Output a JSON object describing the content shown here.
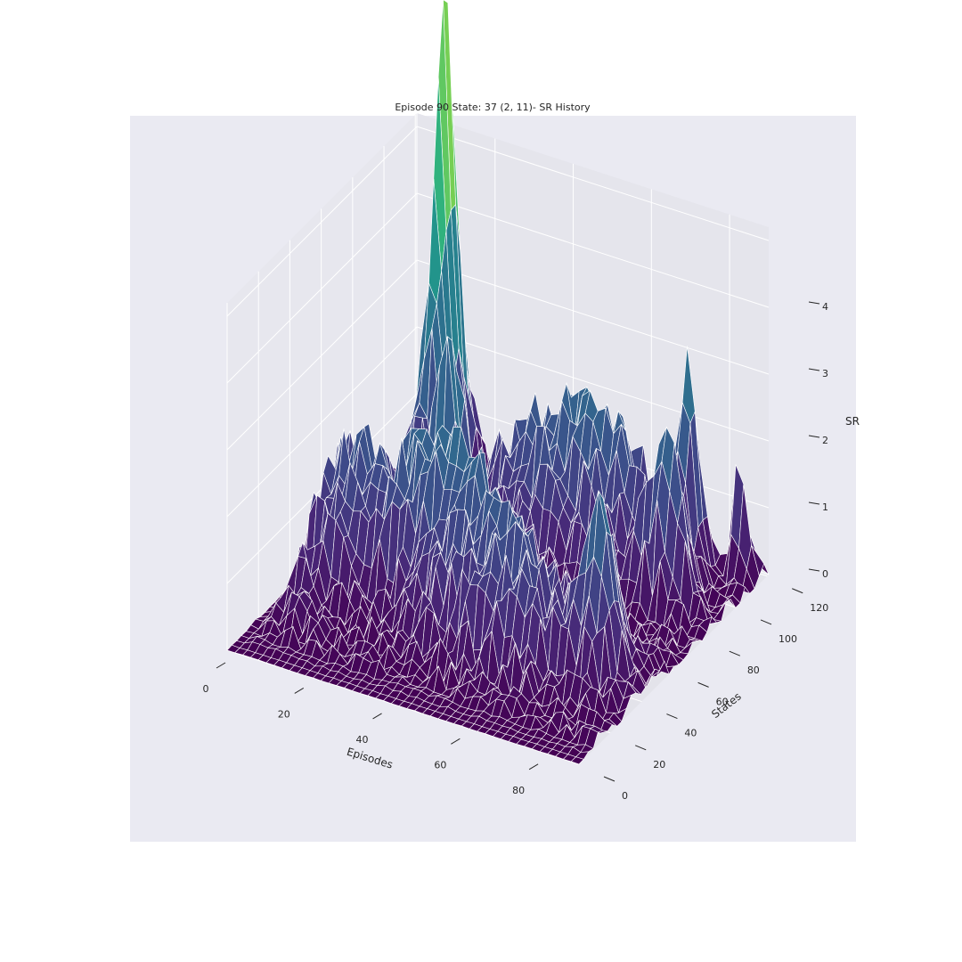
{
  "chart_data": {
    "type": "surface3d",
    "title": "Episode 90 State: 37 (2, 11)- SR History",
    "xlabel": "Episodes",
    "ylabel": "States",
    "zlabel": "SR",
    "xlim": [
      0,
      90
    ],
    "ylim": [
      0,
      121
    ],
    "zlim": [
      0,
      4.7
    ],
    "x_ticks": [
      "0",
      "20",
      "40",
      "60",
      "80"
    ],
    "y_ticks": [
      "0",
      "20",
      "40",
      "60",
      "80",
      "100",
      "120"
    ],
    "z_ticks": [
      "0",
      "1",
      "2",
      "3",
      "4"
    ],
    "colormap": "viridis",
    "grid": true,
    "background": "#eaeaf2",
    "pane_color": "#e3e3ea",
    "edge_color": "#ffffff",
    "peaks": [
      {
        "x": 14,
        "y": 105,
        "z": 4.6,
        "w_x": 1.2,
        "w_y": 6
      },
      {
        "x": 15,
        "y": 100,
        "z": 3.6,
        "w_x": 3,
        "w_y": 10
      },
      {
        "x": 25,
        "y": 78,
        "z": 3.1,
        "w_x": 3,
        "w_y": 5
      },
      {
        "x": 32,
        "y": 55,
        "z": 2.3,
        "w_x": 14,
        "w_y": 8
      },
      {
        "x": 42,
        "y": 95,
        "z": 1.9,
        "w_x": 10,
        "w_y": 12
      },
      {
        "x": 60,
        "y": 100,
        "z": 1.6,
        "w_x": 8,
        "w_y": 10
      },
      {
        "x": 75,
        "y": 108,
        "z": 3.0,
        "w_x": 2,
        "w_y": 4
      },
      {
        "x": 76,
        "y": 90,
        "z": 2.3,
        "w_x": 4,
        "w_y": 5
      },
      {
        "x": 78,
        "y": 45,
        "z": 2.2,
        "w_x": 3,
        "w_y": 6
      },
      {
        "x": 55,
        "y": 40,
        "z": 1.5,
        "w_x": 14,
        "w_y": 10
      },
      {
        "x": 85,
        "y": 115,
        "z": 1.4,
        "w_x": 2,
        "w_y": 2
      },
      {
        "x": 8,
        "y": 60,
        "z": 1.2,
        "w_x": 6,
        "w_y": 20
      }
    ]
  }
}
